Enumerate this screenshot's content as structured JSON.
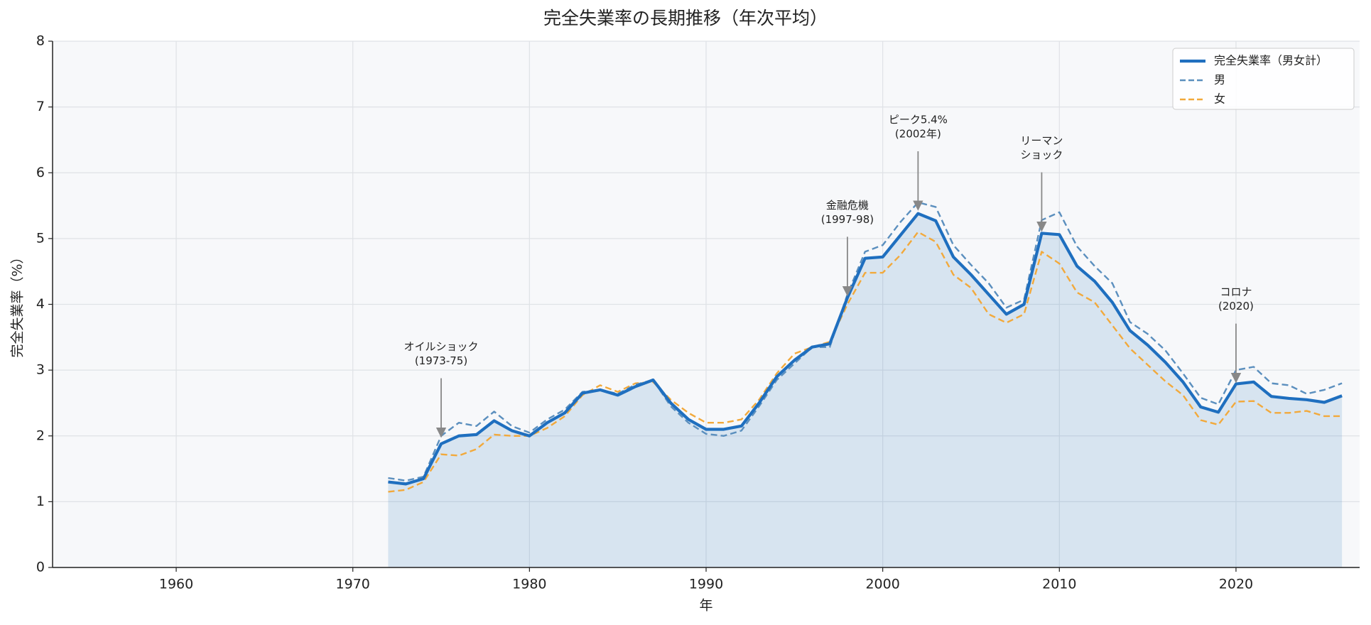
{
  "chart_data": {
    "type": "line",
    "title": "完全失業率の長期推移（年次平均）",
    "xlabel": "年",
    "ylabel": "完全失業率（%）",
    "x": [
      1972,
      1973,
      1974,
      1975,
      1976,
      1977,
      1978,
      1979,
      1980,
      1981,
      1982,
      1983,
      1984,
      1985,
      1986,
      1987,
      1988,
      1989,
      1990,
      1991,
      1992,
      1993,
      1994,
      1995,
      1996,
      1997,
      1998,
      1999,
      2000,
      2001,
      2002,
      2003,
      2004,
      2005,
      2006,
      2007,
      2008,
      2009,
      2010,
      2011,
      2012,
      2013,
      2014,
      2015,
      2016,
      2017,
      2018,
      2019,
      2020,
      2021,
      2022,
      2023,
      2024,
      2025,
      2026
    ],
    "series": [
      {
        "name": "完全失業率（男女計）",
        "color": "#1f6fbf",
        "style": "solid",
        "fill": true,
        "values": [
          1.3,
          1.27,
          1.35,
          1.88,
          2.0,
          2.02,
          2.23,
          2.08,
          2.0,
          2.2,
          2.35,
          2.65,
          2.7,
          2.62,
          2.75,
          2.85,
          2.5,
          2.25,
          2.1,
          2.1,
          2.15,
          2.5,
          2.9,
          3.15,
          3.35,
          3.4,
          4.1,
          4.7,
          4.72,
          5.05,
          5.38,
          5.27,
          4.72,
          4.45,
          4.15,
          3.85,
          4.0,
          5.08,
          5.06,
          4.58,
          4.35,
          4.03,
          3.6,
          3.38,
          3.12,
          2.82,
          2.44,
          2.36,
          2.79,
          2.82,
          2.6,
          2.57,
          2.55,
          2.51,
          2.61
        ]
      },
      {
        "name": "男",
        "color": "#5b8fbe",
        "style": "dashed",
        "fill": false,
        "values": [
          1.36,
          1.32,
          1.38,
          2.0,
          2.2,
          2.15,
          2.37,
          2.15,
          2.05,
          2.25,
          2.4,
          2.67,
          2.7,
          2.64,
          2.78,
          2.85,
          2.45,
          2.2,
          2.03,
          2.0,
          2.08,
          2.45,
          2.85,
          3.1,
          3.35,
          3.35,
          4.15,
          4.8,
          4.9,
          5.25,
          5.55,
          5.48,
          4.9,
          4.6,
          4.32,
          3.95,
          4.07,
          5.28,
          5.4,
          4.88,
          4.58,
          4.32,
          3.73,
          3.55,
          3.3,
          2.95,
          2.58,
          2.48,
          3.0,
          3.05,
          2.8,
          2.77,
          2.64,
          2.7,
          2.8
        ]
      },
      {
        "name": "女",
        "color": "#f2a93b",
        "style": "dashed",
        "fill": false,
        "values": [
          1.15,
          1.18,
          1.3,
          1.72,
          1.7,
          1.8,
          2.02,
          2.0,
          2.0,
          2.12,
          2.3,
          2.62,
          2.77,
          2.67,
          2.8,
          2.82,
          2.55,
          2.35,
          2.2,
          2.2,
          2.25,
          2.55,
          2.95,
          3.25,
          3.35,
          3.43,
          4.0,
          4.48,
          4.48,
          4.75,
          5.1,
          4.95,
          4.45,
          4.25,
          3.85,
          3.72,
          3.85,
          4.8,
          4.62,
          4.18,
          4.03,
          3.68,
          3.33,
          3.08,
          2.83,
          2.62,
          2.24,
          2.17,
          2.52,
          2.53,
          2.35,
          2.35,
          2.38,
          2.3,
          2.3
        ]
      }
    ],
    "xlim": [
      1953,
      2027
    ],
    "xticks": [
      1960,
      1970,
      1980,
      1990,
      2000,
      2010,
      2020
    ],
    "ylim": [
      0,
      8
    ],
    "yticks": [
      0,
      1,
      2,
      3,
      4,
      5,
      6,
      7,
      8
    ],
    "grid": true,
    "legend": "upper right",
    "annotations": [
      {
        "lines": [
          "オイルショック",
          "(1973-75)"
        ],
        "x": 1975,
        "y": 1.97
      },
      {
        "lines": [
          "金融危機",
          "(1997-98)"
        ],
        "x": 1998,
        "y": 4.12
      },
      {
        "lines": [
          "ピーク5.4%",
          "(2002年)"
        ],
        "x": 2002,
        "y": 5.42
      },
      {
        "lines": [
          "リーマン",
          "ショック"
        ],
        "x": 2009,
        "y": 5.1
      },
      {
        "lines": [
          "コロナ",
          "(2020)"
        ],
        "x": 2020,
        "y": 2.8
      }
    ]
  }
}
